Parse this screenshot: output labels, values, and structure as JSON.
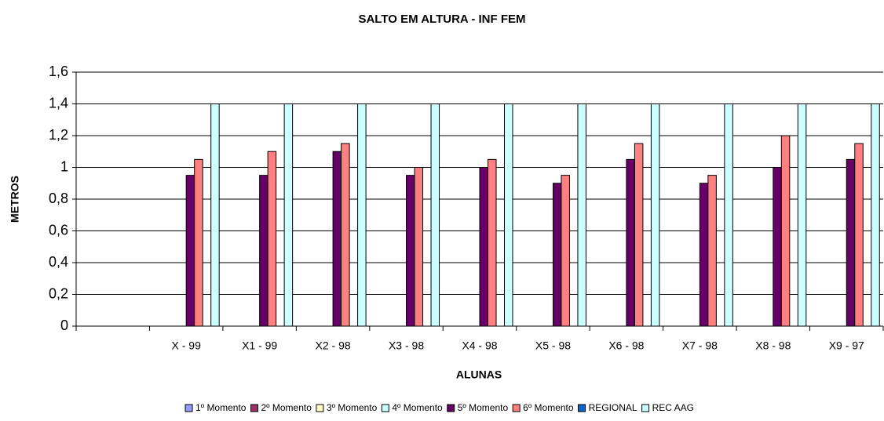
{
  "chart_data": {
    "type": "bar",
    "title": "SALTO EM ALTURA - INF FEM",
    "y_label": "METROS",
    "x_label": "ALUNAS",
    "categories": [
      null,
      "X - 99",
      "X1 - 99",
      "X2 - 98",
      "X3 - 98",
      "X4 - 98",
      "X5 - 98",
      "X6 - 98",
      "X7 - 98",
      "X8 - 98",
      "X9 - 97"
    ],
    "series": [
      {
        "name": "1º Momento",
        "color": "#9999ff",
        "values": [
          null,
          null,
          null,
          null,
          null,
          null,
          null,
          null,
          null,
          null,
          null
        ]
      },
      {
        "name": "2º Momento",
        "color": "#993366",
        "values": [
          null,
          null,
          null,
          null,
          null,
          null,
          null,
          null,
          null,
          null,
          null
        ]
      },
      {
        "name": "3º Momento",
        "color": "#ffffcc",
        "values": [
          null,
          null,
          null,
          null,
          null,
          null,
          null,
          null,
          null,
          null,
          null
        ]
      },
      {
        "name": "4º Momento",
        "color": "#ccffff",
        "values": [
          null,
          null,
          null,
          null,
          null,
          null,
          null,
          null,
          null,
          null,
          null
        ]
      },
      {
        "name": "5º Momento",
        "color": "#660066",
        "values": [
          null,
          0.95,
          0.95,
          1.1,
          0.95,
          1.0,
          0.9,
          1.05,
          0.9,
          1.0,
          1.05
        ]
      },
      {
        "name": "6º Momento",
        "color": "#ff8080",
        "values": [
          null,
          1.05,
          1.1,
          1.15,
          1.0,
          1.05,
          0.95,
          1.15,
          0.95,
          1.2,
          1.15
        ]
      },
      {
        "name": "REGIONAL",
        "color": "#0066cc",
        "values": [
          null,
          null,
          null,
          null,
          null,
          null,
          null,
          null,
          null,
          null,
          null
        ]
      },
      {
        "name": "REC AAG",
        "color": "#ccffff",
        "values": [
          null,
          1.4,
          1.4,
          1.4,
          1.4,
          1.4,
          1.4,
          1.4,
          1.4,
          1.4,
          1.4
        ]
      }
    ],
    "ylim": [
      0,
      1.6
    ],
    "yticks": [
      0,
      {
        "value": 0.2,
        "label": "0,2"
      },
      {
        "value": 0.4,
        "label": "0,4"
      },
      {
        "value": 0.6,
        "label": "0,6"
      },
      {
        "value": 0.8,
        "label": "0,8"
      },
      1,
      {
        "value": 1.2,
        "label": "1,2"
      },
      {
        "value": 1.4,
        "label": "1,4"
      },
      {
        "value": 1.6,
        "label": "1,6"
      }
    ],
    "grid": true,
    "legend": "bottom"
  }
}
